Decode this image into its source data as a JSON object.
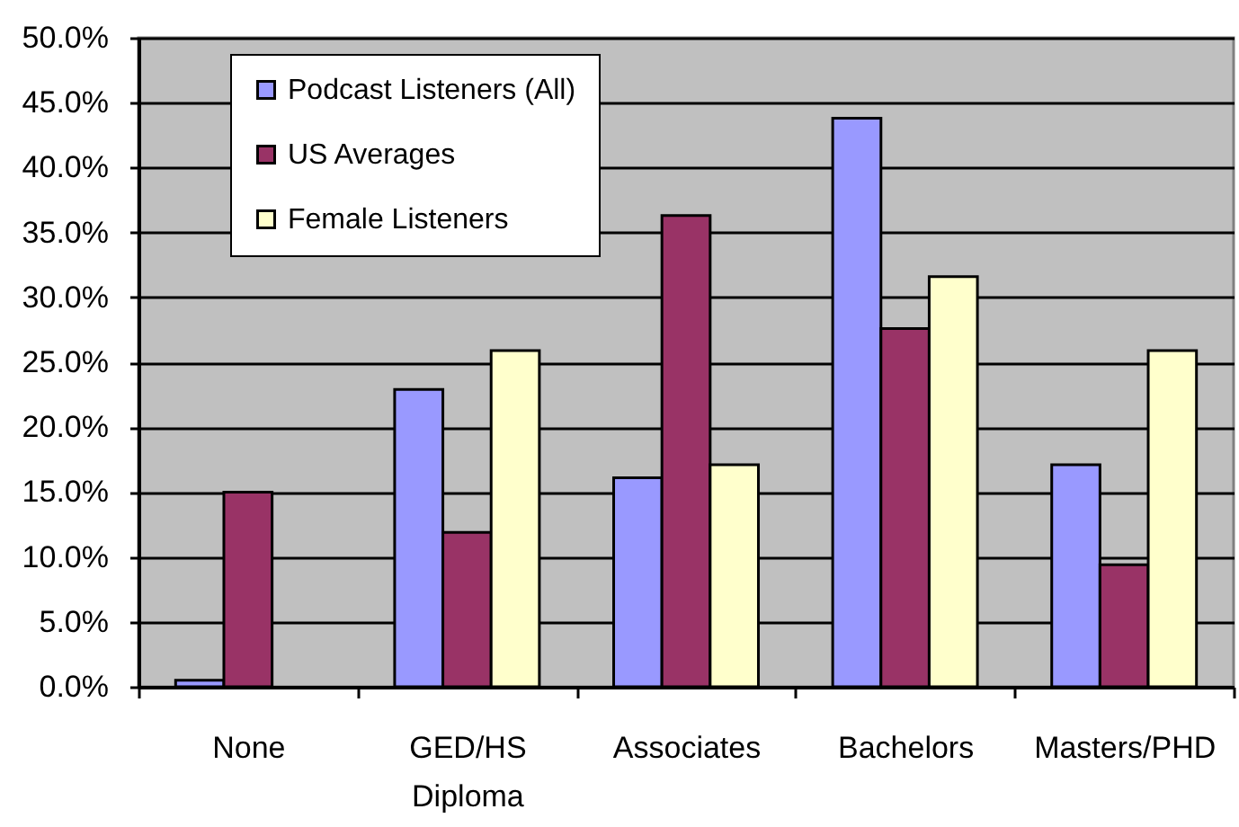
{
  "chart_data": {
    "type": "bar",
    "categories": [
      "None",
      "GED/HS Diploma",
      "Associates",
      "Bachelors",
      "Masters/PHD"
    ],
    "series": [
      {
        "name": "Podcast Listeners (All)",
        "color": "#9999ff",
        "values": [
          0.5,
          22.9,
          16.1,
          43.8,
          17.1
        ]
      },
      {
        "name": "US Averages",
        "color": "#993366",
        "values": [
          15.0,
          11.9,
          36.3,
          27.6,
          9.4
        ]
      },
      {
        "name": "Female Listeners",
        "color": "#ffffcc",
        "values": [
          null,
          25.9,
          17.1,
          31.6,
          25.9
        ]
      }
    ],
    "ylim": [
      0,
      50
    ],
    "yticks": [
      {
        "value": 0,
        "label": "0.0%"
      },
      {
        "value": 5,
        "label": "5.0%"
      },
      {
        "value": 10,
        "label": "10.0%"
      },
      {
        "value": 15,
        "label": "15.0%"
      },
      {
        "value": 20,
        "label": "20.0%"
      },
      {
        "value": 25,
        "label": "25.0%"
      },
      {
        "value": 30,
        "label": "30.0%"
      },
      {
        "value": 35,
        "label": "35.0%"
      },
      {
        "value": 40,
        "label": "40.0%"
      },
      {
        "value": 45,
        "label": "45.0%"
      },
      {
        "value": 50,
        "label": "50.0%"
      }
    ],
    "grid": "y",
    "legend": "top left"
  }
}
